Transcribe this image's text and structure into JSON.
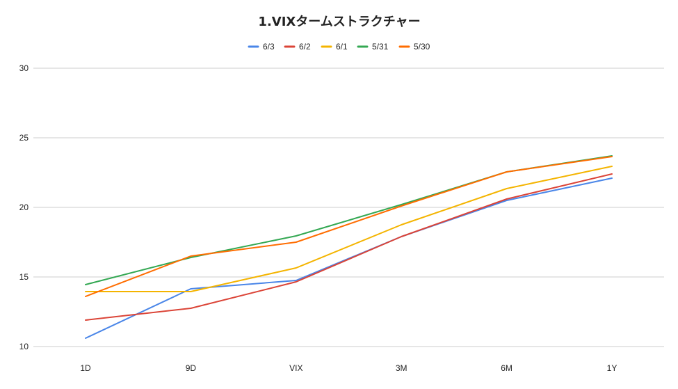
{
  "chart_data": {
    "type": "line",
    "title": "1.VIXタームストラクチャー",
    "xlabel": "",
    "ylabel": "",
    "categories": [
      "1D",
      "9D",
      "VIX",
      "3M",
      "6M",
      "1Y"
    ],
    "ylim": [
      10,
      30
    ],
    "yticks": [
      10,
      15,
      20,
      25,
      30
    ],
    "grid": true,
    "legend_position": "top",
    "series": [
      {
        "name": "6/3",
        "color": "#4a86e8",
        "values": [
          10.6,
          14.15,
          14.75,
          17.9,
          20.5,
          22.1
        ]
      },
      {
        "name": "6/2",
        "color": "#db4437",
        "values": [
          11.9,
          12.75,
          14.65,
          17.9,
          20.6,
          22.4
        ]
      },
      {
        "name": "6/1",
        "color": "#f4b400",
        "values": [
          13.95,
          13.95,
          15.65,
          18.75,
          21.35,
          22.95
        ]
      },
      {
        "name": "5/31",
        "color": "#34a853",
        "values": [
          14.45,
          16.4,
          17.95,
          20.2,
          22.55,
          23.7
        ]
      },
      {
        "name": "5/30",
        "color": "#ff6d01",
        "values": [
          13.6,
          16.5,
          17.5,
          20.1,
          22.55,
          23.65
        ]
      }
    ]
  }
}
